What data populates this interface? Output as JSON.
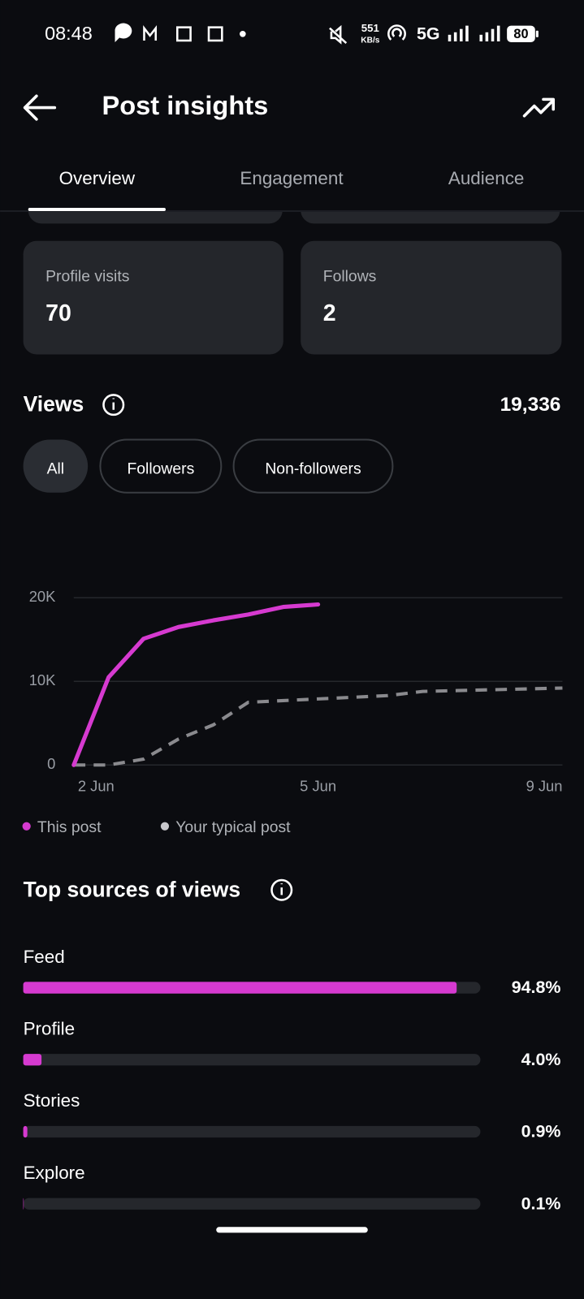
{
  "status_bar": {
    "time": "08:48",
    "net_speed": "551",
    "net_unit": "KB/s",
    "network": "5G",
    "battery": "80"
  },
  "header": {
    "title": "Post insights"
  },
  "tabs": {
    "items": [
      "Overview",
      "Engagement",
      "Audience"
    ],
    "active": 0
  },
  "stats": [
    {
      "label": "Profile visits",
      "value": 70
    },
    {
      "label": "Follows",
      "value": 2
    }
  ],
  "views": {
    "title": "Views",
    "total": "19,336"
  },
  "filters": {
    "items": [
      "All",
      "Followers",
      "Non-followers"
    ],
    "active": 0
  },
  "chart_data": [
    {
      "type": "line",
      "categories": [
        "2 Jun",
        null,
        null,
        null,
        null,
        null,
        null,
        "5 Jun",
        null,
        null,
        null,
        null,
        null,
        null,
        "9 Jun"
      ],
      "series": [
        {
          "name": "This post",
          "color": "#d63ad0",
          "dashed": false,
          "values": [
            0,
            10500,
            15100,
            16500,
            17300,
            18000,
            18900,
            19200,
            null,
            null,
            null,
            null,
            null,
            null,
            null
          ]
        },
        {
          "name": "Your typical post",
          "color": "#8a8a8e",
          "dashed": true,
          "values": [
            0,
            0,
            700,
            3100,
            4800,
            7500,
            7700,
            7900,
            8100,
            8300,
            8800,
            8900,
            9000,
            9100,
            9200
          ]
        }
      ],
      "ylim": [
        0,
        20000
      ],
      "yticks": [
        0,
        {
          "value": 10000,
          "label": "10K"
        },
        {
          "value": 20000,
          "label": "20K"
        }
      ],
      "grid": true
    },
    {
      "type": "hbar",
      "title": "Top sources of views",
      "categories": [
        "Feed",
        "Profile",
        "Stories",
        "Explore"
      ],
      "values": [
        94.8,
        4.0,
        0.9,
        0.1
      ],
      "value_labels": [
        "94.8%",
        "4.0%",
        "0.9%",
        "0.1%"
      ],
      "color": "#d63ad0",
      "xlim": [
        0,
        100
      ]
    }
  ]
}
